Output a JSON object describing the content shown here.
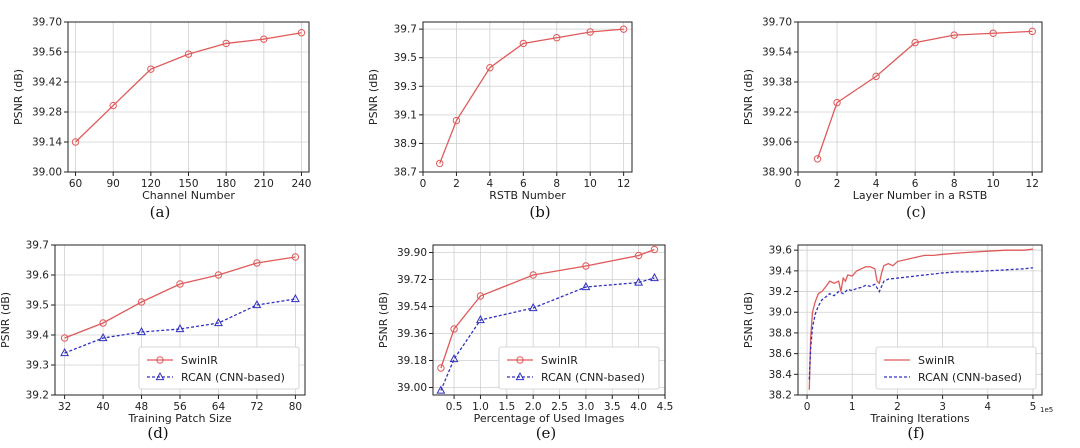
{
  "chart_data": [
    {
      "type": "line",
      "caption": "(a)",
      "xlabel": "Channel Number",
      "ylabel": "PSNR (dB)",
      "xlim": [
        54,
        246
      ],
      "ylim": [
        39.0,
        39.7
      ],
      "xticks": [
        60,
        90,
        120,
        150,
        180,
        210,
        240
      ],
      "xtick_labels": [
        "60",
        "90",
        "120",
        "150",
        "180",
        "210",
        "240"
      ],
      "yticks": [
        39.0,
        39.14,
        39.28,
        39.42,
        39.56,
        39.7
      ],
      "ytick_labels": [
        "39.00",
        "39.14",
        "39.28",
        "39.42",
        "39.56",
        "39.70"
      ],
      "grid": true,
      "series": [
        {
          "color": "#e05a5a",
          "marker": "circle",
          "dash": false,
          "x": [
            60,
            90,
            120,
            150,
            180,
            210,
            240
          ],
          "values": [
            39.14,
            39.31,
            39.48,
            39.55,
            39.6,
            39.62,
            39.65
          ]
        }
      ]
    },
    {
      "type": "line",
      "caption": "(b)",
      "xlabel": "RSTB Number",
      "ylabel": "PSNR (dB)",
      "xlim": [
        0,
        12.5
      ],
      "ylim": [
        38.7,
        39.75
      ],
      "xticks": [
        0,
        2,
        4,
        6,
        8,
        10,
        12
      ],
      "xtick_labels": [
        "0",
        "2",
        "4",
        "6",
        "8",
        "10",
        "12"
      ],
      "yticks": [
        38.7,
        38.9,
        39.1,
        39.3,
        39.5,
        39.7
      ],
      "ytick_labels": [
        "38.7",
        "38.9",
        "39.1",
        "39.3",
        "39.5",
        "39.7"
      ],
      "grid": true,
      "series": [
        {
          "color": "#e05a5a",
          "marker": "circle",
          "dash": false,
          "x": [
            1,
            2,
            4,
            6,
            8,
            10,
            12
          ],
          "values": [
            38.76,
            39.06,
            39.43,
            39.6,
            39.64,
            39.68,
            39.7
          ]
        }
      ]
    },
    {
      "type": "line",
      "caption": "(c)",
      "xlabel": "Layer Number in a RSTB",
      "ylabel": "PSNR (dB)",
      "xlim": [
        0,
        12.5
      ],
      "ylim": [
        38.9,
        39.7
      ],
      "xticks": [
        0,
        2,
        4,
        6,
        8,
        10,
        12
      ],
      "xtick_labels": [
        "0",
        "2",
        "4",
        "6",
        "8",
        "10",
        "12"
      ],
      "yticks": [
        38.9,
        39.06,
        39.22,
        39.38,
        39.54,
        39.7
      ],
      "ytick_labels": [
        "38.90",
        "39.06",
        "39.22",
        "39.38",
        "39.54",
        "39.70"
      ],
      "grid": true,
      "series": [
        {
          "color": "#e05a5a",
          "marker": "circle",
          "dash": false,
          "x": [
            1,
            2,
            4,
            6,
            8,
            10,
            12
          ],
          "values": [
            38.97,
            39.27,
            39.41,
            39.59,
            39.63,
            39.64,
            39.65
          ]
        }
      ]
    },
    {
      "type": "line",
      "caption": "(d)",
      "xlabel": "Training Patch Size",
      "ylabel": "PSNR (dB)",
      "xlim": [
        30,
        82
      ],
      "ylim": [
        39.2,
        39.7
      ],
      "xticks": [
        32,
        40,
        48,
        56,
        64,
        72,
        80
      ],
      "xtick_labels": [
        "32",
        "40",
        "48",
        "56",
        "64",
        "72",
        "80"
      ],
      "yticks": [
        39.2,
        39.3,
        39.4,
        39.5,
        39.6,
        39.7
      ],
      "ytick_labels": [
        "39.2",
        "39.3",
        "39.4",
        "39.5",
        "39.6",
        "39.7"
      ],
      "grid": true,
      "legend": "lower-right",
      "series": [
        {
          "name": "SwinIR",
          "color": "#e05a5a",
          "marker": "circle",
          "dash": false,
          "x": [
            32,
            40,
            48,
            56,
            64,
            72,
            80
          ],
          "values": [
            39.39,
            39.44,
            39.51,
            39.57,
            39.6,
            39.64,
            39.66
          ]
        },
        {
          "name": "RCAN (CNN-based)",
          "color": "#3030c0",
          "marker": "triangle",
          "dash": true,
          "x": [
            32,
            40,
            48,
            56,
            64,
            72,
            80
          ],
          "values": [
            39.34,
            39.39,
            39.41,
            39.42,
            39.44,
            39.5,
            39.52
          ]
        }
      ]
    },
    {
      "type": "line",
      "caption": "(e)",
      "xlabel": "Percentage of Used Images",
      "ylabel": "PSNR (dB)",
      "xlim": [
        0.1,
        4.5
      ],
      "ylim": [
        38.95,
        39.95
      ],
      "xticks": [
        0.5,
        1.0,
        1.5,
        2.0,
        2.5,
        3.0,
        3.5,
        4.0,
        4.5
      ],
      "xtick_labels": [
        "0.5",
        "1.0",
        "1.5",
        "2.0",
        "2.5",
        "3.0",
        "3.5",
        "4.0",
        "4.5"
      ],
      "yticks": [
        39.0,
        39.18,
        39.36,
        39.54,
        39.72,
        39.9
      ],
      "ytick_labels": [
        "39.00",
        "39.18",
        "39.36",
        "39.54",
        "39.72",
        "39.90"
      ],
      "grid": true,
      "legend": "lower-right",
      "series": [
        {
          "name": "SwinIR",
          "color": "#e05a5a",
          "marker": "circle",
          "dash": false,
          "x": [
            0.25,
            0.5,
            1.0,
            2.0,
            3.0,
            4.0,
            4.3
          ],
          "values": [
            39.13,
            39.39,
            39.61,
            39.75,
            39.81,
            39.88,
            39.92
          ]
        },
        {
          "name": "RCAN (CNN-based)",
          "color": "#3030c0",
          "marker": "triangle",
          "dash": true,
          "x": [
            0.25,
            0.5,
            1.0,
            2.0,
            3.0,
            4.0,
            4.3
          ],
          "values": [
            38.98,
            39.19,
            39.45,
            39.53,
            39.67,
            39.7,
            39.73
          ]
        }
      ]
    },
    {
      "type": "line",
      "caption": "(f)",
      "xlabel": "Training Iterations",
      "ylabel": "PSNR (dB)",
      "xlim": [
        -0.2,
        5.2
      ],
      "ylim": [
        38.2,
        39.65
      ],
      "xticks": [
        0,
        1,
        2,
        3,
        4,
        5
      ],
      "xtick_labels": [
        "0",
        "1",
        "2",
        "3",
        "4",
        "5"
      ],
      "x_multiplier": "1e5",
      "yticks": [
        38.2,
        38.4,
        38.6,
        38.8,
        39.0,
        39.2,
        39.4,
        39.6
      ],
      "ytick_labels": [
        "38.2",
        "38.4",
        "38.6",
        "38.8",
        "39.0",
        "39.2",
        "39.4",
        "39.6"
      ],
      "grid": true,
      "legend": "lower-right",
      "series": [
        {
          "name": "SwinIR",
          "color": "#e05a5a",
          "marker": "none",
          "dash": false,
          "x": [
            0.05,
            0.08,
            0.12,
            0.18,
            0.25,
            0.33,
            0.42,
            0.5,
            0.6,
            0.7,
            0.75,
            0.8,
            0.85,
            0.9,
            1.0,
            1.1,
            1.2,
            1.3,
            1.4,
            1.5,
            1.55,
            1.6,
            1.65,
            1.7,
            1.8,
            1.9,
            2.0,
            2.2,
            2.4,
            2.6,
            2.8,
            3.0,
            3.3,
            3.6,
            4.0,
            4.4,
            4.8,
            5.0
          ],
          "values": [
            38.25,
            38.75,
            39.0,
            39.1,
            39.18,
            39.2,
            39.25,
            39.3,
            39.28,
            39.3,
            39.2,
            39.33,
            39.3,
            39.36,
            39.35,
            39.4,
            39.42,
            39.44,
            39.44,
            39.42,
            39.3,
            39.28,
            39.38,
            39.45,
            39.47,
            39.45,
            39.49,
            39.51,
            39.53,
            39.55,
            39.55,
            39.56,
            39.57,
            39.58,
            39.59,
            39.6,
            39.6,
            39.61
          ]
        },
        {
          "name": "RCAN (CNN-based)",
          "color": "#3030c0",
          "marker": "none",
          "dash": true,
          "x": [
            0.05,
            0.08,
            0.12,
            0.18,
            0.25,
            0.33,
            0.42,
            0.5,
            0.6,
            0.7,
            0.8,
            0.9,
            1.0,
            1.1,
            1.2,
            1.3,
            1.4,
            1.5,
            1.6,
            1.7,
            1.8,
            2.0,
            2.2,
            2.4,
            2.6,
            2.8,
            3.0,
            3.3,
            3.6,
            4.0,
            4.4,
            4.8,
            5.0
          ],
          "values": [
            38.35,
            38.65,
            38.85,
            38.98,
            39.06,
            39.12,
            39.15,
            39.18,
            39.16,
            39.2,
            39.18,
            39.22,
            39.21,
            39.23,
            39.24,
            39.26,
            39.25,
            39.27,
            39.2,
            39.3,
            39.32,
            39.33,
            39.34,
            39.35,
            39.36,
            39.37,
            39.38,
            39.39,
            39.39,
            39.4,
            39.41,
            39.42,
            39.43
          ]
        }
      ]
    }
  ]
}
